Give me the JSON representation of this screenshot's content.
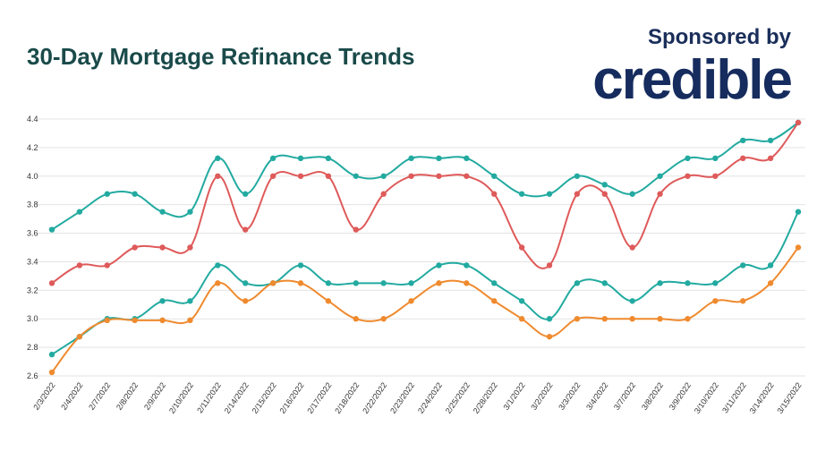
{
  "header": {
    "title": "30-Day Mortgage Refinance Trends",
    "sponsored_label": "Sponsored by",
    "brand": "credible"
  },
  "colors": {
    "teal": "#22aaa0",
    "red": "#df5a5a",
    "orange": "#ef8a2e",
    "title": "#1a4a4a",
    "brand": "#162c5e"
  },
  "chart_data": {
    "type": "line",
    "title": "30-Day Mortgage Refinance Trends",
    "xlabel": "",
    "ylabel": "",
    "ylim": [
      2.6,
      4.4
    ],
    "yticks": [
      "2.6",
      "2.8",
      "3.0",
      "3.2",
      "3.4",
      "3.6",
      "3.8",
      "4.0",
      "4.2",
      "4.4"
    ],
    "grid": true,
    "x": [
      "2/3/2022",
      "2/4/2022",
      "2/7/2022",
      "2/8/2022",
      "2/9/2022",
      "2/10/2022",
      "2/11/2022",
      "2/14/2022",
      "2/15/2022",
      "2/16/2022",
      "2/17/2022",
      "2/18/2022",
      "2/22/2022",
      "2/23/2022",
      "2/24/2022",
      "2/25/2022",
      "2/28/2022",
      "3/1/2022",
      "3/2/2022",
      "3/3/2022",
      "3/4/2022",
      "3/7/2022",
      "3/8/2022",
      "3/9/2022",
      "3/10/2022",
      "3/11/2022",
      "3/14/2022",
      "3/15/2022"
    ],
    "series": [
      {
        "color": "#22aaa0",
        "values": [
          3.625,
          3.75,
          3.875,
          3.875,
          3.75,
          3.75,
          4.125,
          3.875,
          4.125,
          4.125,
          4.125,
          4.0,
          4.0,
          4.125,
          4.125,
          4.125,
          4.0,
          3.875,
          3.875,
          4.0,
          3.94,
          3.875,
          4.0,
          4.125,
          4.125,
          4.25,
          4.25,
          4.375
        ]
      },
      {
        "color": "#df5a5a",
        "values": [
          3.25,
          3.375,
          3.375,
          3.5,
          3.5,
          3.5,
          4.0,
          3.625,
          4.0,
          4.0,
          4.0,
          3.625,
          3.875,
          4.0,
          4.0,
          4.0,
          3.875,
          3.5,
          3.375,
          3.875,
          3.875,
          3.5,
          3.875,
          4.0,
          4.0,
          4.125,
          4.125,
          4.375
        ]
      },
      {
        "color": "#22aaa0",
        "values": [
          2.75,
          2.875,
          3.0,
          3.0,
          3.125,
          3.125,
          3.375,
          3.25,
          3.25,
          3.375,
          3.25,
          3.25,
          3.25,
          3.25,
          3.375,
          3.375,
          3.25,
          3.125,
          3.0,
          3.25,
          3.25,
          3.125,
          3.25,
          3.25,
          3.25,
          3.375,
          3.375,
          3.75
        ]
      },
      {
        "color": "#ef8a2e",
        "values": [
          2.625,
          2.875,
          2.99,
          2.99,
          2.99,
          2.99,
          3.25,
          3.125,
          3.25,
          3.25,
          3.125,
          3.0,
          3.0,
          3.125,
          3.25,
          3.25,
          3.125,
          3.0,
          2.875,
          3.0,
          3.0,
          3.0,
          3.0,
          3.0,
          3.125,
          3.125,
          3.25,
          3.5
        ]
      }
    ]
  }
}
